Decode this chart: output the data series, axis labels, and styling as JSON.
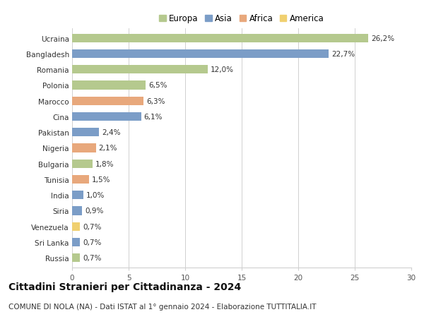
{
  "categories": [
    "Russia",
    "Sri Lanka",
    "Venezuela",
    "Siria",
    "India",
    "Tunisia",
    "Bulgaria",
    "Nigeria",
    "Pakistan",
    "Cina",
    "Marocco",
    "Polonia",
    "Romania",
    "Bangladesh",
    "Ucraina"
  ],
  "values": [
    0.7,
    0.7,
    0.7,
    0.9,
    1.0,
    1.5,
    1.8,
    2.1,
    2.4,
    6.1,
    6.3,
    6.5,
    12.0,
    22.7,
    26.2
  ],
  "labels": [
    "0,7%",
    "0,7%",
    "0,7%",
    "0,9%",
    "1,0%",
    "1,5%",
    "1,8%",
    "2,1%",
    "2,4%",
    "6,1%",
    "6,3%",
    "6,5%",
    "12,0%",
    "22,7%",
    "26,2%"
  ],
  "continent": [
    "Europa",
    "Asia",
    "America",
    "Asia",
    "Asia",
    "Africa",
    "Europa",
    "Africa",
    "Asia",
    "Asia",
    "Africa",
    "Europa",
    "Europa",
    "Asia",
    "Europa"
  ],
  "continent_colors": {
    "Europa": "#b5c98e",
    "Asia": "#7b9dc7",
    "Africa": "#e8a87c",
    "America": "#f0d070"
  },
  "legend_order": [
    "Europa",
    "Asia",
    "Africa",
    "America"
  ],
  "xlim": [
    0,
    30
  ],
  "xticks": [
    0,
    5,
    10,
    15,
    20,
    25,
    30
  ],
  "title": "Cittadini Stranieri per Cittadinanza - 2024",
  "subtitle": "COMUNE DI NOLA (NA) - Dati ISTAT al 1° gennaio 2024 - Elaborazione TUTTITALIA.IT",
  "background_color": "#ffffff",
  "grid_color": "#d0d0d0",
  "bar_height": 0.55,
  "label_fontsize": 7.5,
  "tick_fontsize": 7.5,
  "title_fontsize": 10,
  "subtitle_fontsize": 7.5
}
